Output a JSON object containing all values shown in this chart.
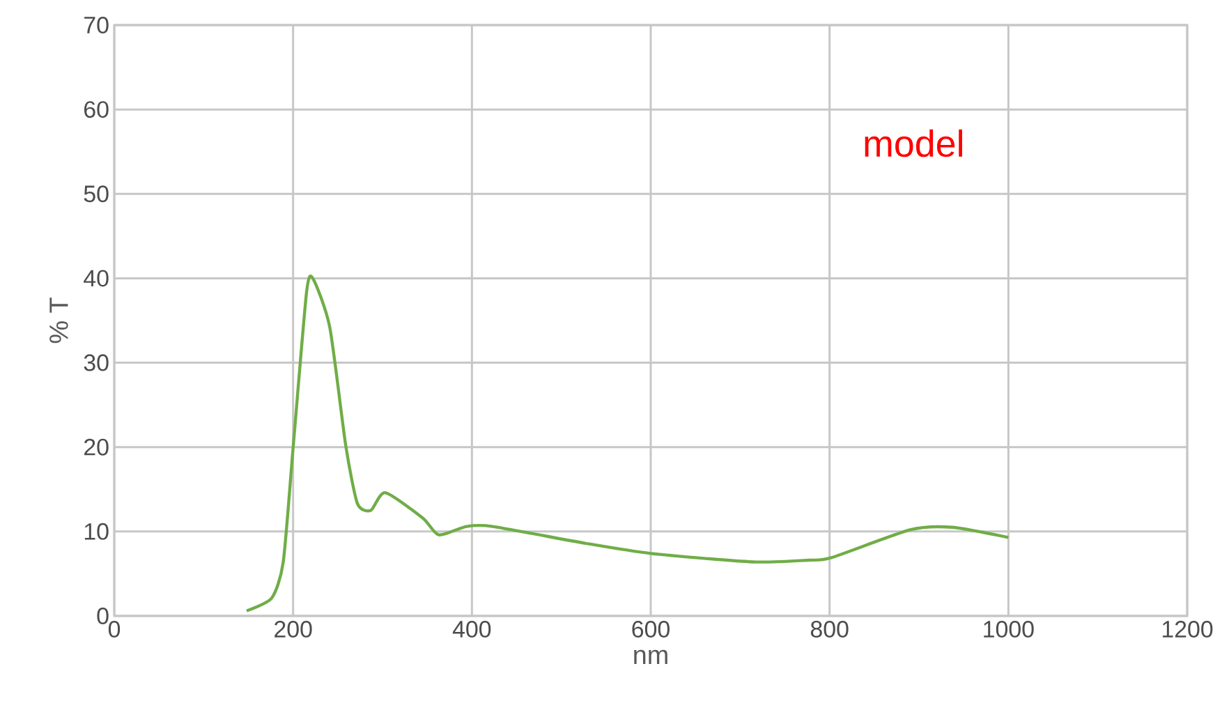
{
  "chart_data": {
    "type": "line",
    "xlabel": "nm",
    "ylabel": "% T",
    "annotations": [
      "model"
    ],
    "series": [
      {
        "color": "#70ad47",
        "x": [
          148,
          176,
          189,
          200,
          215,
          222,
          241,
          259,
          272,
          287,
          303,
          345,
          363,
          394,
          423,
          527,
          600,
          714,
          776,
          802,
          890,
          937,
          1000
        ],
        "values": [
          0.6,
          2.1,
          6.4,
          19.9,
          38.3,
          40.0,
          34.2,
          20.1,
          13.3,
          12.5,
          14.6,
          11.6,
          9.6,
          10.6,
          10.6,
          8.6,
          7.4,
          6.4,
          6.6,
          6.9,
          10.2,
          10.5,
          9.3
        ]
      }
    ],
    "xlim": [
      0,
      1200
    ],
    "ylim": [
      0,
      70
    ],
    "xticks": [
      0,
      200,
      400,
      600,
      800,
      1000,
      1200
    ],
    "yticks": [
      0,
      10,
      20,
      30,
      40,
      50,
      60,
      70
    ],
    "grid": true,
    "marker": "none",
    "line_style": "solid"
  }
}
